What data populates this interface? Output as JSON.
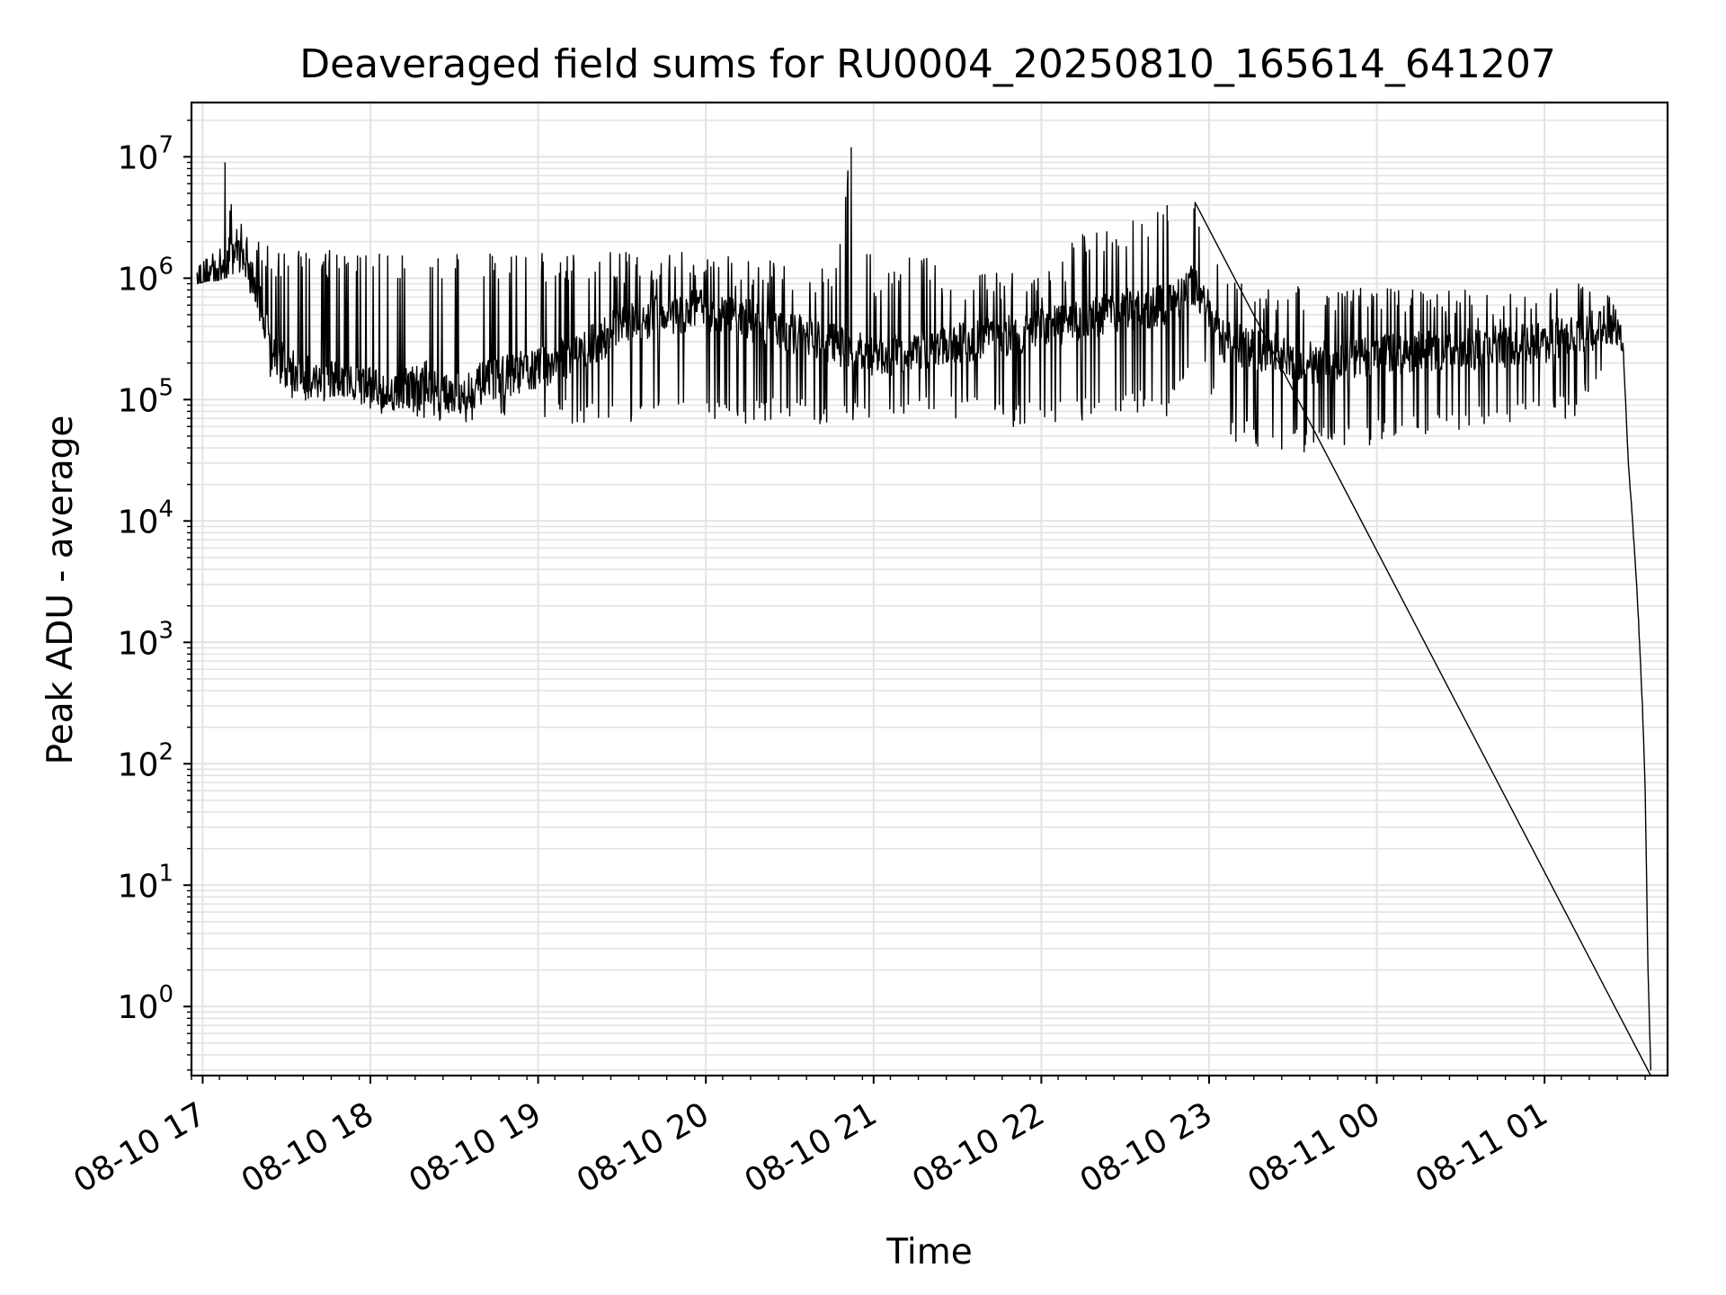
{
  "chart_data": {
    "type": "line",
    "title": "Deaveraged field sums for RU0004_20250810_165614_641207",
    "xlabel": "Time",
    "ylabel": "Peak ADU - average",
    "yscale": "log",
    "ylim": [
      0.27,
      28000000
    ],
    "xlim": [
      "2025-08-10 16:56",
      "2025-08-11 01:44"
    ],
    "grid": true,
    "x_ticks": [
      "08-10 17",
      "08-10 18",
      "08-10 19",
      "08-10 20",
      "08-10 21",
      "08-10 22",
      "08-10 23",
      "08-11 00",
      "08-11 01"
    ],
    "y_ticks": [
      {
        "base": "10",
        "exp": "0"
      },
      {
        "base": "10",
        "exp": "1"
      },
      {
        "base": "10",
        "exp": "2"
      },
      {
        "base": "10",
        "exp": "3"
      },
      {
        "base": "10",
        "exp": "4"
      },
      {
        "base": "10",
        "exp": "5"
      },
      {
        "base": "10",
        "exp": "6"
      },
      {
        "base": "10",
        "exp": "7"
      }
    ],
    "line_color": "#000000",
    "grid_color": "#e3e3e3",
    "series": [
      {
        "x": [
          "2025-08-10 16:58",
          "2025-08-10 17:02",
          "2025-08-10 17:05",
          "2025-08-10 17:08",
          "2025-08-10 17:12",
          "2025-08-10 17:15",
          "2025-08-10 17:20",
          "2025-08-10 17:25",
          "2025-08-10 17:30",
          "2025-08-10 17:40",
          "2025-08-10 17:55",
          "2025-08-10 18:10",
          "2025-08-10 18:20",
          "2025-08-10 18:30",
          "2025-08-10 18:45",
          "2025-08-10 19:00",
          "2025-08-10 19:15",
          "2025-08-10 19:30",
          "2025-08-10 19:45",
          "2025-08-10 20:00",
          "2025-08-10 20:15",
          "2025-08-10 20:30",
          "2025-08-10 20:45",
          "2025-08-10 20:52",
          "2025-08-10 21:00",
          "2025-08-10 21:15",
          "2025-08-10 21:30",
          "2025-08-10 21:45",
          "2025-08-10 22:00",
          "2025-08-10 22:15",
          "2025-08-10 22:30",
          "2025-08-10 22:45",
          "2025-08-10 22:55",
          "2025-08-10 23:05",
          "2025-08-10 23:20",
          "2025-08-10 23:35",
          "2025-08-10 23:50",
          "2025-08-11 00:05",
          "2025-08-11 00:20",
          "2025-08-11 00:35",
          "2025-08-11 00:50",
          "2025-08-11 01:00",
          "2025-08-11 01:10",
          "2025-08-11 01:20",
          "2025-08-11 01:25",
          "2025-08-11 01:28",
          "2025-08-11 01:30",
          "2025-08-11 01:33",
          "2025-08-11 01:35",
          "2025-08-11 01:36",
          "2025-08-11 01:37",
          "2025-08-11 01:38"
        ],
        "y_median": [
          1000000,
          1050000,
          1100000,
          1300000,
          1800000,
          1500000,
          700000,
          250000,
          180000,
          150000,
          130000,
          120000,
          140000,
          110000,
          150000,
          180000,
          250000,
          400000,
          500000,
          550000,
          450000,
          350000,
          300000,
          250000,
          220000,
          250000,
          300000,
          330000,
          380000,
          450000,
          550000,
          600000,
          900000,
          300000,
          250000,
          200000,
          220000,
          240000,
          250000,
          260000,
          280000,
          300000,
          330000,
          400000,
          420000,
          300000,
          30000,
          3000,
          300,
          60,
          2,
          0.3
        ],
        "y_min": [
          900000,
          950000,
          950000,
          1000000,
          1100000,
          1000000,
          500000,
          120000,
          100000,
          80000,
          80000,
          75000,
          60000,
          60000,
          75000,
          70000,
          60000,
          60000,
          65000,
          60000,
          60000,
          70000,
          60000,
          60000,
          60000,
          65000,
          70000,
          60000,
          60000,
          65000,
          80000,
          70000,
          250000,
          45000,
          40000,
          35000,
          40000,
          45000,
          50000,
          55000,
          60000,
          65000,
          70000,
          120000,
          300000,
          250000,
          30000,
          3000,
          300,
          60,
          2,
          0.3
        ],
        "y_max": [
          1200000,
          1500000,
          2500000,
          9000000,
          3500000,
          2500000,
          2000000,
          1800000,
          1800000,
          1800000,
          1700000,
          1600000,
          1600000,
          1600000,
          1600000,
          1600000,
          1600000,
          1650000,
          1650000,
          1600000,
          1500000,
          1300000,
          1200000,
          12000000,
          1100000,
          1800000,
          1000000,
          1200000,
          1000000,
          2500000,
          2800000,
          4000000,
          4200000,
          1000000,
          900000,
          900000,
          900000,
          850000,
          800000,
          800000,
          750000,
          700000,
          1200000,
          800000,
          700000,
          500000,
          30000,
          3000,
          300,
          60,
          2,
          0.3
        ]
      }
    ]
  }
}
